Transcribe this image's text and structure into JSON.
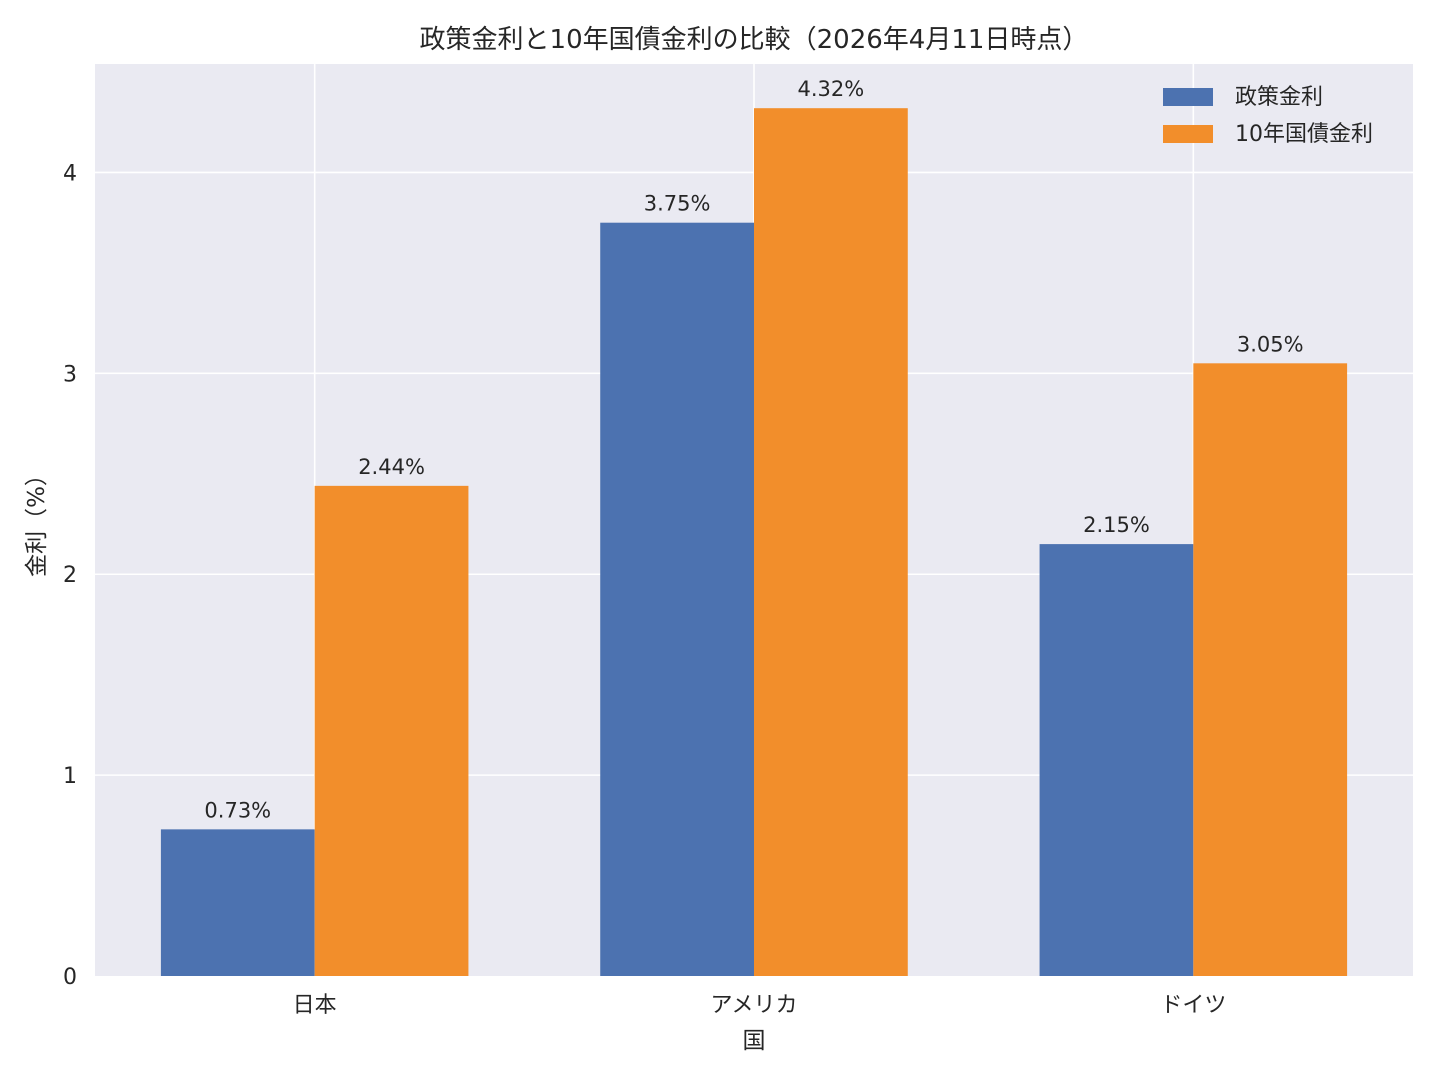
{
  "chart_data": {
    "type": "bar",
    "title": "政策金利と10年国債金利の比較（2026年4月11日時点）",
    "xlabel": "国",
    "ylabel": "金利（%）",
    "categories": [
      "日本",
      "アメリカ",
      "ドイツ"
    ],
    "series": [
      {
        "name": "政策金利",
        "values": [
          0.73,
          3.75,
          2.15
        ],
        "labels": [
          "0.73%",
          "3.75%",
          "2.15%"
        ],
        "color": "#4c72b0"
      },
      {
        "name": "10年国債金利",
        "values": [
          2.44,
          4.32,
          3.05
        ],
        "labels": [
          "2.44%",
          "4.32%",
          "3.05%"
        ],
        "color": "#f28e2b"
      }
    ],
    "ylim": [
      0,
      4.54
    ],
    "yticks": [
      0,
      1,
      2,
      3,
      4
    ],
    "grid": true,
    "legend_position": "top-right",
    "background": "#eaeaf2"
  }
}
